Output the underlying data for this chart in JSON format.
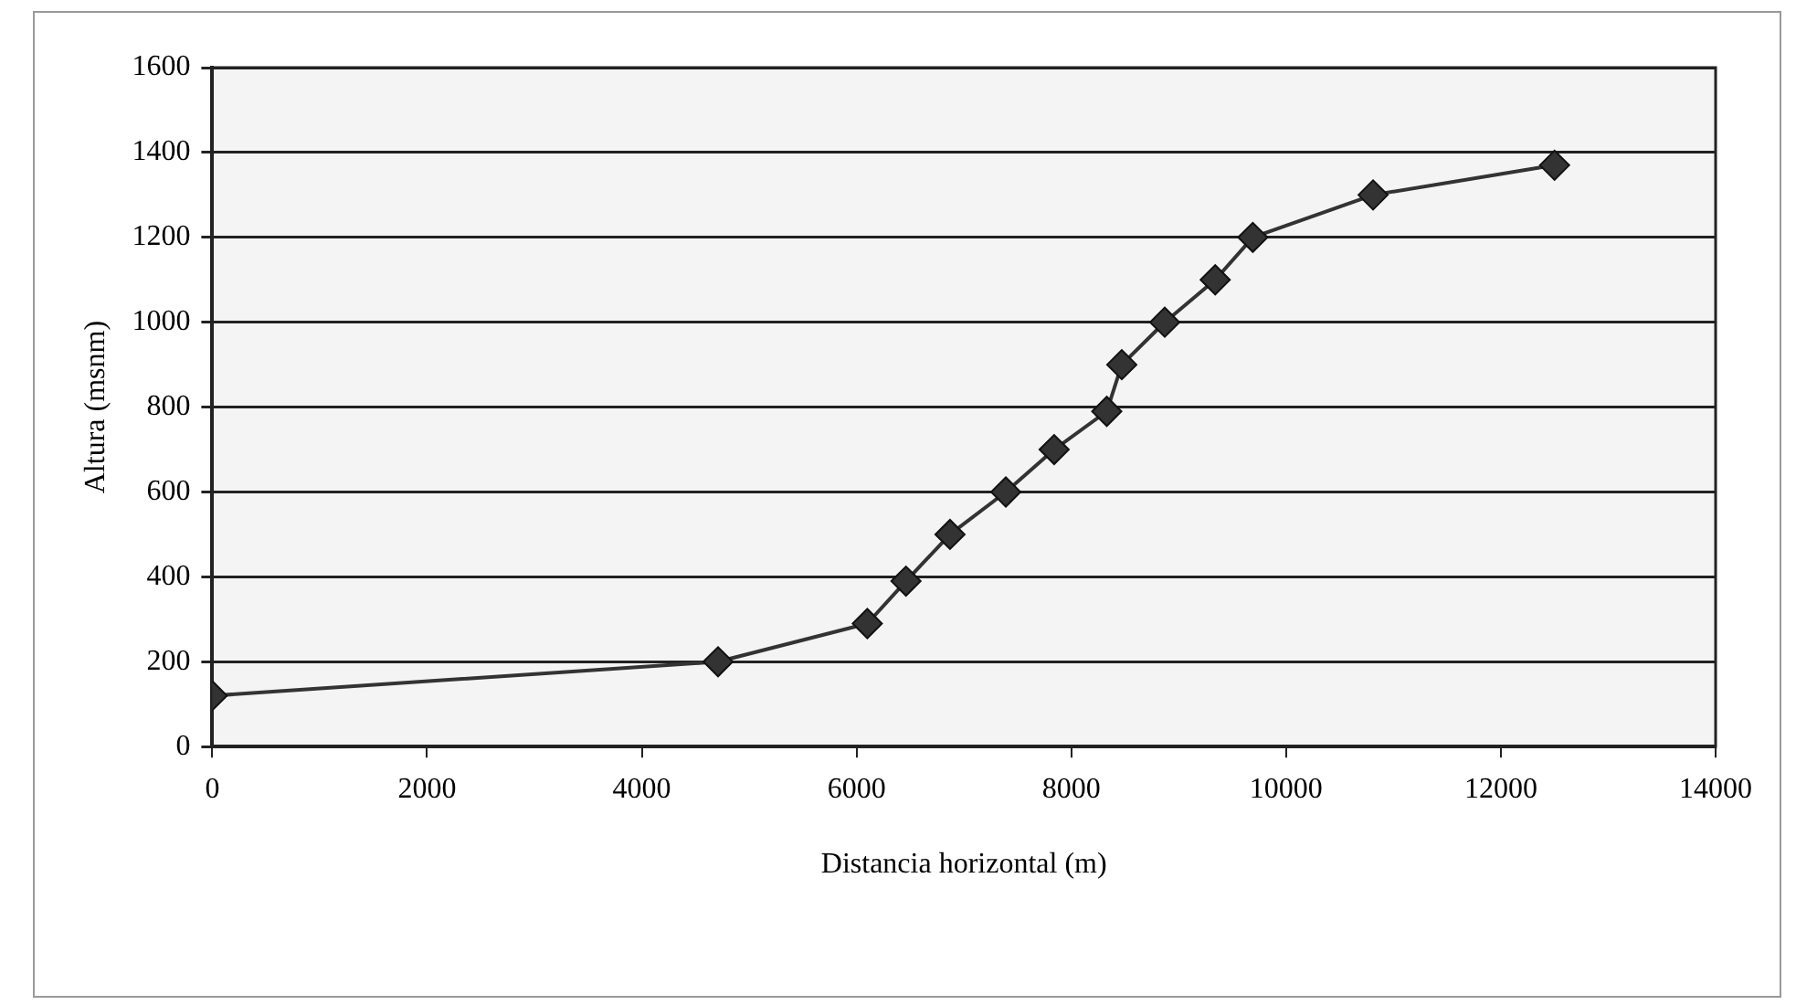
{
  "chart_data": {
    "type": "line",
    "xlabel": "Distancia horizontal (m)",
    "ylabel": "Altura (msnm)",
    "x": [
      0,
      4710,
      6100,
      6460,
      6870,
      7390,
      7840,
      8330,
      8470,
      8870,
      9340,
      9690,
      10810,
      12500
    ],
    "series": [
      {
        "color": "#333333",
        "values": [
          120,
          200,
          290,
          390,
          500,
          600,
          700,
          790,
          900,
          1000,
          1100,
          1200,
          1300,
          1370
        ]
      }
    ],
    "xlim": [
      0,
      14000
    ],
    "xticks": [
      0,
      2000,
      4000,
      6000,
      8000,
      10000,
      12000,
      14000
    ],
    "ylim": [
      0,
      1600
    ],
    "yticks": [
      0,
      200,
      400,
      600,
      800,
      1000,
      1200,
      1400,
      1600
    ],
    "grid": "y",
    "legend": false,
    "marker": "diamond",
    "line_style": "solid"
  }
}
